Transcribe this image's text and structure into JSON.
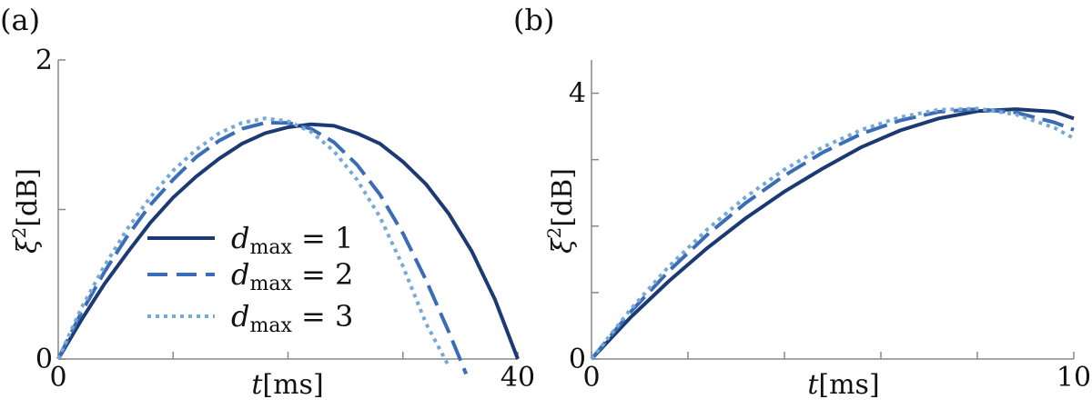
{
  "chart_data": [
    {
      "panel_label": "(a)",
      "type": "line",
      "xlabel_var": "t",
      "xlabel_unit": "[ms]",
      "ylabel_var": "ξ",
      "ylabel_sup": "2",
      "ylabel_unit": "[dB]",
      "xlim": [
        0,
        40
      ],
      "ylim": [
        0,
        2
      ],
      "xtick_values": [
        0,
        10,
        20,
        30,
        40
      ],
      "xtick_labels": [
        "0",
        "",
        "",
        "",
        "40"
      ],
      "ytick_values": [
        0,
        1,
        2
      ],
      "ytick_labels": [
        "0",
        "",
        "2"
      ],
      "legend": {
        "position": "center",
        "entries": [
          {
            "var": "d",
            "sub": "max",
            "eq": " = 1"
          },
          {
            "var": "d",
            "sub": "max",
            "eq": " = 2"
          },
          {
            "var": "d",
            "sub": "max",
            "eq": " = 3"
          }
        ]
      },
      "series": [
        {
          "style": "solid",
          "color": "#1b3a73",
          "x": [
            0,
            2,
            4,
            6,
            8,
            10,
            12,
            14,
            16,
            18,
            20,
            22,
            24,
            26,
            28,
            30,
            32,
            34,
            36,
            38,
            40
          ],
          "y": [
            0,
            0.26,
            0.5,
            0.71,
            0.91,
            1.08,
            1.22,
            1.34,
            1.44,
            1.51,
            1.55,
            1.57,
            1.56,
            1.51,
            1.44,
            1.32,
            1.17,
            0.97,
            0.72,
            0.4,
            0
          ]
        },
        {
          "style": "dashed",
          "color": "#3a6db5",
          "x": [
            0,
            2,
            4,
            6,
            8,
            10,
            12,
            14,
            16,
            18,
            20,
            22,
            24,
            26,
            28,
            30,
            32,
            34,
            35.5
          ],
          "y": [
            0,
            0.31,
            0.58,
            0.82,
            1.03,
            1.2,
            1.35,
            1.46,
            1.54,
            1.58,
            1.58,
            1.54,
            1.45,
            1.3,
            1.1,
            0.84,
            0.53,
            0.18,
            -0.1
          ]
        },
        {
          "style": "dotted",
          "color": "#74a9d8",
          "x": [
            0,
            2,
            4,
            6,
            8,
            10,
            12,
            14,
            16,
            18,
            20,
            22,
            24,
            26,
            28,
            30,
            32,
            34
          ],
          "y": [
            0,
            0.34,
            0.62,
            0.87,
            1.08,
            1.26,
            1.4,
            1.51,
            1.58,
            1.61,
            1.59,
            1.52,
            1.39,
            1.2,
            0.95,
            0.62,
            0.24,
            -0.05
          ]
        }
      ]
    },
    {
      "panel_label": "(b)",
      "type": "line",
      "xlabel_var": "t",
      "xlabel_unit": "[ms]",
      "ylabel_var": "ξ",
      "ylabel_sup": "2",
      "ylabel_unit": "[dB]",
      "xlim": [
        0,
        10
      ],
      "ylim": [
        0,
        4.5
      ],
      "xtick_values": [
        0,
        2,
        4,
        6,
        8,
        10
      ],
      "xtick_labels": [
        "0",
        "",
        "",
        "",
        "",
        "10"
      ],
      "ytick_values": [
        0,
        1,
        2,
        3,
        4
      ],
      "ytick_labels": [
        "0",
        "",
        "",
        "",
        "4"
      ],
      "series": [
        {
          "style": "solid",
          "color": "#1b3a73",
          "x": [
            0,
            0.8,
            1.6,
            2.4,
            3.2,
            4.0,
            4.8,
            5.6,
            6.4,
            7.2,
            8.0,
            8.8,
            9.6,
            10
          ],
          "y": [
            0,
            0.62,
            1.17,
            1.67,
            2.12,
            2.52,
            2.87,
            3.19,
            3.44,
            3.62,
            3.73,
            3.76,
            3.72,
            3.62
          ]
        },
        {
          "style": "dashed",
          "color": "#3a6db5",
          "x": [
            0,
            0.8,
            1.6,
            2.4,
            3.2,
            4.0,
            4.8,
            5.6,
            6.4,
            7.2,
            8.0,
            8.8,
            9.6,
            10
          ],
          "y": [
            0,
            0.7,
            1.32,
            1.87,
            2.35,
            2.76,
            3.11,
            3.39,
            3.59,
            3.72,
            3.76,
            3.71,
            3.56,
            3.45
          ]
        },
        {
          "style": "dotted",
          "color": "#74a9d8",
          "x": [
            0,
            0.8,
            1.6,
            2.4,
            3.2,
            4.0,
            4.8,
            5.6,
            6.4,
            7.2,
            8.0,
            8.8,
            9.6,
            10
          ],
          "y": [
            0,
            0.74,
            1.39,
            1.95,
            2.44,
            2.85,
            3.19,
            3.45,
            3.64,
            3.75,
            3.77,
            3.68,
            3.48,
            3.32
          ]
        }
      ]
    }
  ]
}
